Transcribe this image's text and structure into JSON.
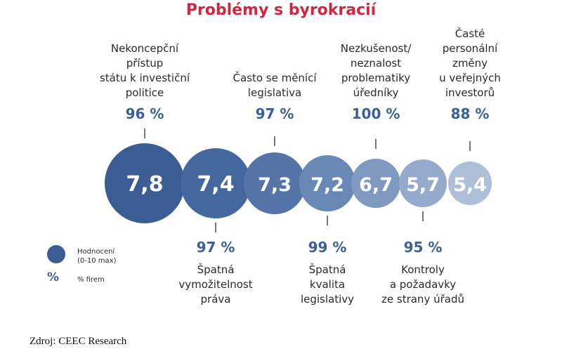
{
  "chart_data": {
    "type": "bubble",
    "title": "Problémy s byrokracií",
    "legend": {
      "rating_label": "Hodnocení\n(0-10 max)",
      "percent_symbol": "%",
      "percent_label": "% firem"
    },
    "items": [
      {
        "label": "Nekoncepční\npřístup\nstátu k investiční\npolitice",
        "rating": 7.8,
        "rating_label": "7,8",
        "percent": 96,
        "percent_label": "96 %",
        "position": "top",
        "color": "#3b5d94"
      },
      {
        "label": "Špatná\nvymožitelnost\npráva",
        "rating": 7.4,
        "rating_label": "7,4",
        "percent": 97,
        "percent_label": "97 %",
        "position": "bottom",
        "color": "#44679d"
      },
      {
        "label": "Často se měnící\nlegislativa",
        "rating": 7.3,
        "rating_label": "7,3",
        "percent": 97,
        "percent_label": "97 %",
        "position": "top",
        "color": "#5575a8"
      },
      {
        "label": "Špatná\nkvalita\nlegislativy",
        "rating": 7.2,
        "rating_label": "7,2",
        "percent": 99,
        "percent_label": "99 %",
        "position": "bottom",
        "color": "#6a88b5"
      },
      {
        "label": "Nezkušenost/\nneznalost\nproblematiky\núředníky",
        "rating": 6.7,
        "rating_label": "6,7",
        "percent": 100,
        "percent_label": "100 %",
        "position": "top",
        "color": "#7f99c1"
      },
      {
        "label": "Kontroly\na požadavky\nze strany úřadů",
        "rating": 5.7,
        "rating_label": "5,7",
        "percent": 95,
        "percent_label": "95 %",
        "position": "bottom",
        "color": "#96abcc"
      },
      {
        "label": "Časté\npersonální\nzměny\nu veřejných\ninvestorů",
        "rating": 5.4,
        "rating_label": "5,4",
        "percent": 88,
        "percent_label": "88 %",
        "position": "top",
        "color": "#aebfd8"
      }
    ]
  },
  "source": "Zdroj: CEEC Research"
}
